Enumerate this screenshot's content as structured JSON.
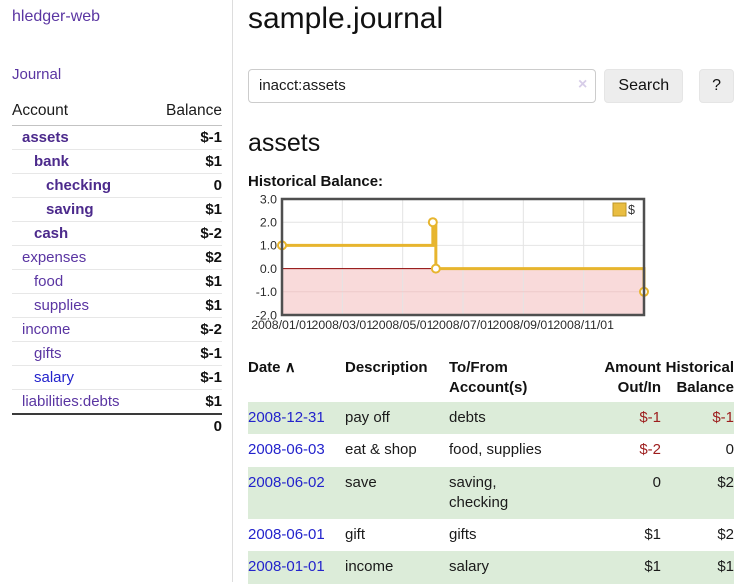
{
  "sidebar": {
    "brand": "hledger-web",
    "journal_label": "Journal",
    "header": {
      "account": "Account",
      "balance": "Balance"
    },
    "accounts": [
      {
        "name": "assets",
        "balance": "$-1"
      },
      {
        "name": "bank",
        "balance": "$1"
      },
      {
        "name": "checking",
        "balance": "0"
      },
      {
        "name": "saving",
        "balance": "$1"
      },
      {
        "name": "cash",
        "balance": "$-2"
      },
      {
        "name": "expenses",
        "balance": "$2"
      },
      {
        "name": "food",
        "balance": "$1"
      },
      {
        "name": "supplies",
        "balance": "$1"
      },
      {
        "name": "income",
        "balance": "$-2"
      },
      {
        "name": "gifts",
        "balance": "$-1"
      },
      {
        "name": "salary",
        "balance": "$-1"
      },
      {
        "name": "liabilities:debts",
        "balance": "$1"
      }
    ],
    "total": "0"
  },
  "main": {
    "title": "sample.journal",
    "search": {
      "value": "inacct:assets",
      "clear_icon": "×",
      "button_label": "Search",
      "help_label": "?"
    },
    "account_heading": "assets",
    "chart_label": "Historical Balance:"
  },
  "chart_data": {
    "type": "line",
    "step": true,
    "title": "Historical Balance",
    "series": [
      {
        "name": "$",
        "points": [
          [
            "2008-01-01",
            1
          ],
          [
            "2008-06-01",
            2
          ],
          [
            "2008-06-03",
            0
          ],
          [
            "2008-12-31",
            -1
          ]
        ],
        "x_months": [
          0,
          5.0,
          5.1,
          12.0
        ],
        "values": [
          1,
          2,
          0,
          -1
        ]
      }
    ],
    "xlim": [
      0,
      12
    ],
    "ylim": [
      -2,
      3
    ],
    "y_ticks": [
      "3.0",
      "2.0",
      "1.0",
      "0.0",
      "-1.0",
      "-2.0"
    ],
    "y_tick_values": [
      3,
      2,
      1,
      0,
      -1,
      -2
    ],
    "x_tick_positions": [
      0,
      2,
      4,
      6,
      8,
      10
    ],
    "x_tick_labels": [
      "2008/01/01",
      "2008/03/01",
      "2008/05/01",
      "2008/07/01",
      "2008/09/01",
      "2008/11/01"
    ],
    "legend": {
      "label": "$",
      "position": "top-right"
    },
    "grid": true,
    "colors": {
      "line": "#e7b52e",
      "marker_fill": "#ffffff",
      "negative_area": "#f9dada",
      "zero_line": "#8b0000",
      "grid": "#e4e4e4",
      "grid_negative": "#eec9c9",
      "border": "#4f4f4f",
      "legend_fill": "#e9bd41",
      "legend_stroke": "#bd9628"
    }
  },
  "register": {
    "sort_icon": "∧",
    "columns": [
      "Date",
      "Description",
      "To/From\nAccount(s)",
      "Amount\nOut/In",
      "Historical\nBalance"
    ],
    "rows": [
      {
        "date": "2008-12-31",
        "description": "pay off",
        "accounts": "debts",
        "amount": "$-1",
        "balance": "$-1"
      },
      {
        "date": "2008-06-03",
        "description": "eat & shop",
        "accounts": "food, supplies",
        "amount": "$-2",
        "balance": "0"
      },
      {
        "date": "2008-06-02",
        "description": "save",
        "accounts": "saving,\nchecking",
        "amount": "0",
        "balance": "$2"
      },
      {
        "date": "2008-06-01",
        "description": "gift",
        "accounts": "gifts",
        "amount": "$1",
        "balance": "$2"
      },
      {
        "date": "2008-01-01",
        "description": "income",
        "accounts": "salary",
        "amount": "$1",
        "balance": "$1"
      }
    ]
  },
  "palette": {
    "link_purple": "#5a35a2",
    "link_purple_bold": "#4c2a8c",
    "link_blue": "#2323cc",
    "negative_strong": "#9d1d1d",
    "negative_muted": "#bb7777",
    "row_stripe_green": "#dcecd9",
    "button_bg": "#ededed"
  }
}
